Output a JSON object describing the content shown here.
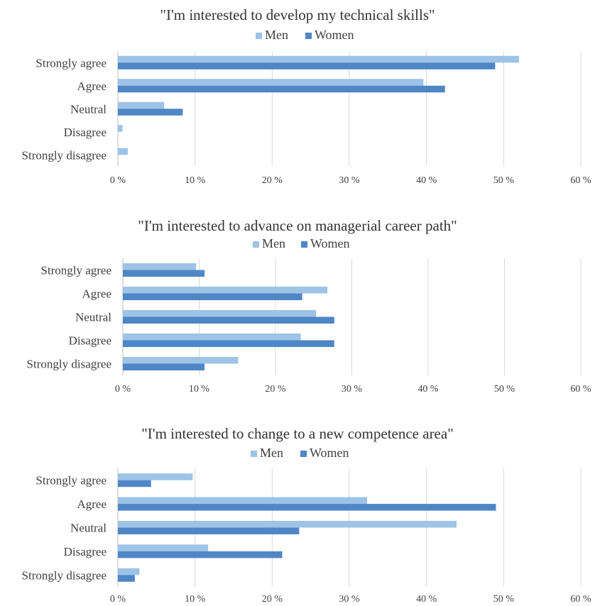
{
  "chart_data": [
    {
      "type": "bar",
      "orientation": "horizontal",
      "title": "\"I'm interested to develop my technical skills\"",
      "categories": [
        "Strongly agree",
        "Agree",
        "Neutral",
        "Disagree",
        "Strongly disagree"
      ],
      "series": [
        {
          "name": "Men",
          "color": "#9dc3e6",
          "values": [
            52,
            39.6,
            6.0,
            0.6,
            1.3
          ]
        },
        {
          "name": "Women",
          "color": "#4f86c6",
          "values": [
            48.9,
            42.4,
            8.4,
            0,
            0
          ]
        }
      ],
      "xlim": [
        0,
        60
      ],
      "xticks": [
        "0 %",
        "10 %",
        "20 %",
        "30 %",
        "40 %",
        "50 %",
        "60 %"
      ],
      "grid": "vertical",
      "legend": "top"
    },
    {
      "type": "bar",
      "orientation": "horizontal",
      "title": "\"I'm interested to advance on managerial career path\"",
      "categories": [
        "Strongly agree",
        "Agree",
        "Neutral",
        "Disagree",
        "Strongly disagree"
      ],
      "series": [
        {
          "name": "Men",
          "color": "#9dc3e6",
          "values": [
            9.6,
            26.8,
            25.3,
            23.3,
            15.1
          ]
        },
        {
          "name": "Women",
          "color": "#4f86c6",
          "values": [
            10.7,
            23.5,
            27.7,
            27.7,
            10.7
          ]
        }
      ],
      "xlim": [
        0,
        60
      ],
      "xticks": [
        "0 %",
        "10 %",
        "20 %",
        "30 %",
        "40 %",
        "50 %",
        "60 %"
      ],
      "grid": "vertical",
      "legend": "top"
    },
    {
      "type": "bar",
      "orientation": "horizontal",
      "title": "\"I'm interested to change to a new competence area\"",
      "categories": [
        "Strongly agree",
        "Agree",
        "Neutral",
        "Disagree",
        "Strongly disagree"
      ],
      "series": [
        {
          "name": "Men",
          "color": "#9dc3e6",
          "values": [
            9.7,
            32.3,
            43.9,
            11.7,
            2.8
          ]
        },
        {
          "name": "Women",
          "color": "#4f86c6",
          "values": [
            4.3,
            49,
            23.5,
            21.3,
            2.2
          ]
        }
      ],
      "xlim": [
        0,
        60
      ],
      "xticks": [
        "0 %",
        "10 %",
        "20 %",
        "30 %",
        "40 %",
        "50 %",
        "60 %"
      ],
      "grid": "vertical",
      "legend": "top"
    }
  ]
}
